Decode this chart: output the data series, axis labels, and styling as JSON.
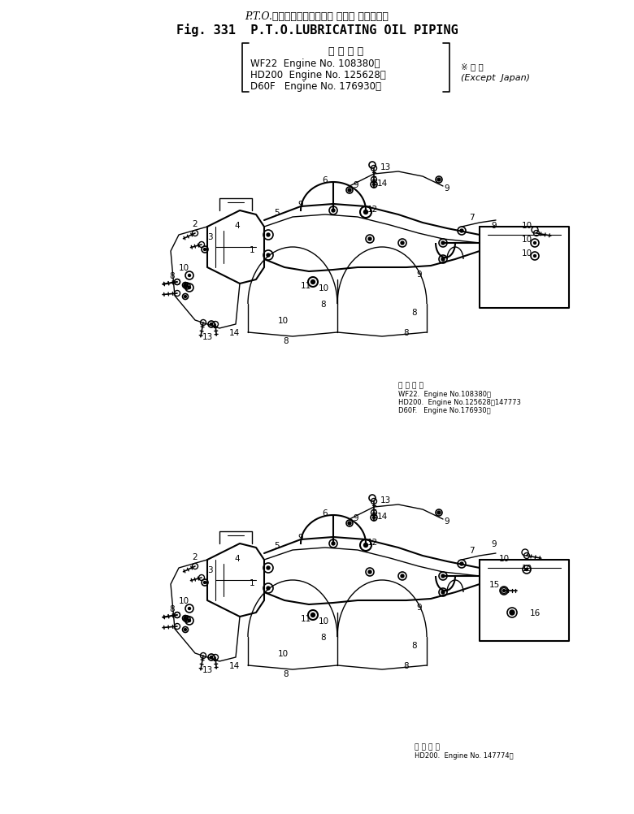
{
  "title_jp": "P.T.O.ルーブリケーティング オイル パイピング",
  "title_en": "Fig. 331  P.T.O.LUBRICATING OIL PIPING",
  "appl_header": "適 用 号 機",
  "appl1": "WF22  Engine No. 108380～",
  "appl2": "HD200  Engine No. 125628～",
  "appl3": "D60F   Engine No. 176930～",
  "except_jp": "※ 外 貨",
  "except_en": "(Except  Japan)",
  "note1_header": "適 用 号 機",
  "note1_l1": "WF22.  Engine No.108380～",
  "note1_l2": "HD200.  Engine No.125628～147773",
  "note1_l3": "D60F.   Engine No.176930～",
  "note2_header": "適 用 号 機",
  "note2_l1": "HD200.  Engine No. 147774～",
  "bg": "#ffffff",
  "fw": 7.8,
  "fh": 10.03,
  "dpi": 100
}
